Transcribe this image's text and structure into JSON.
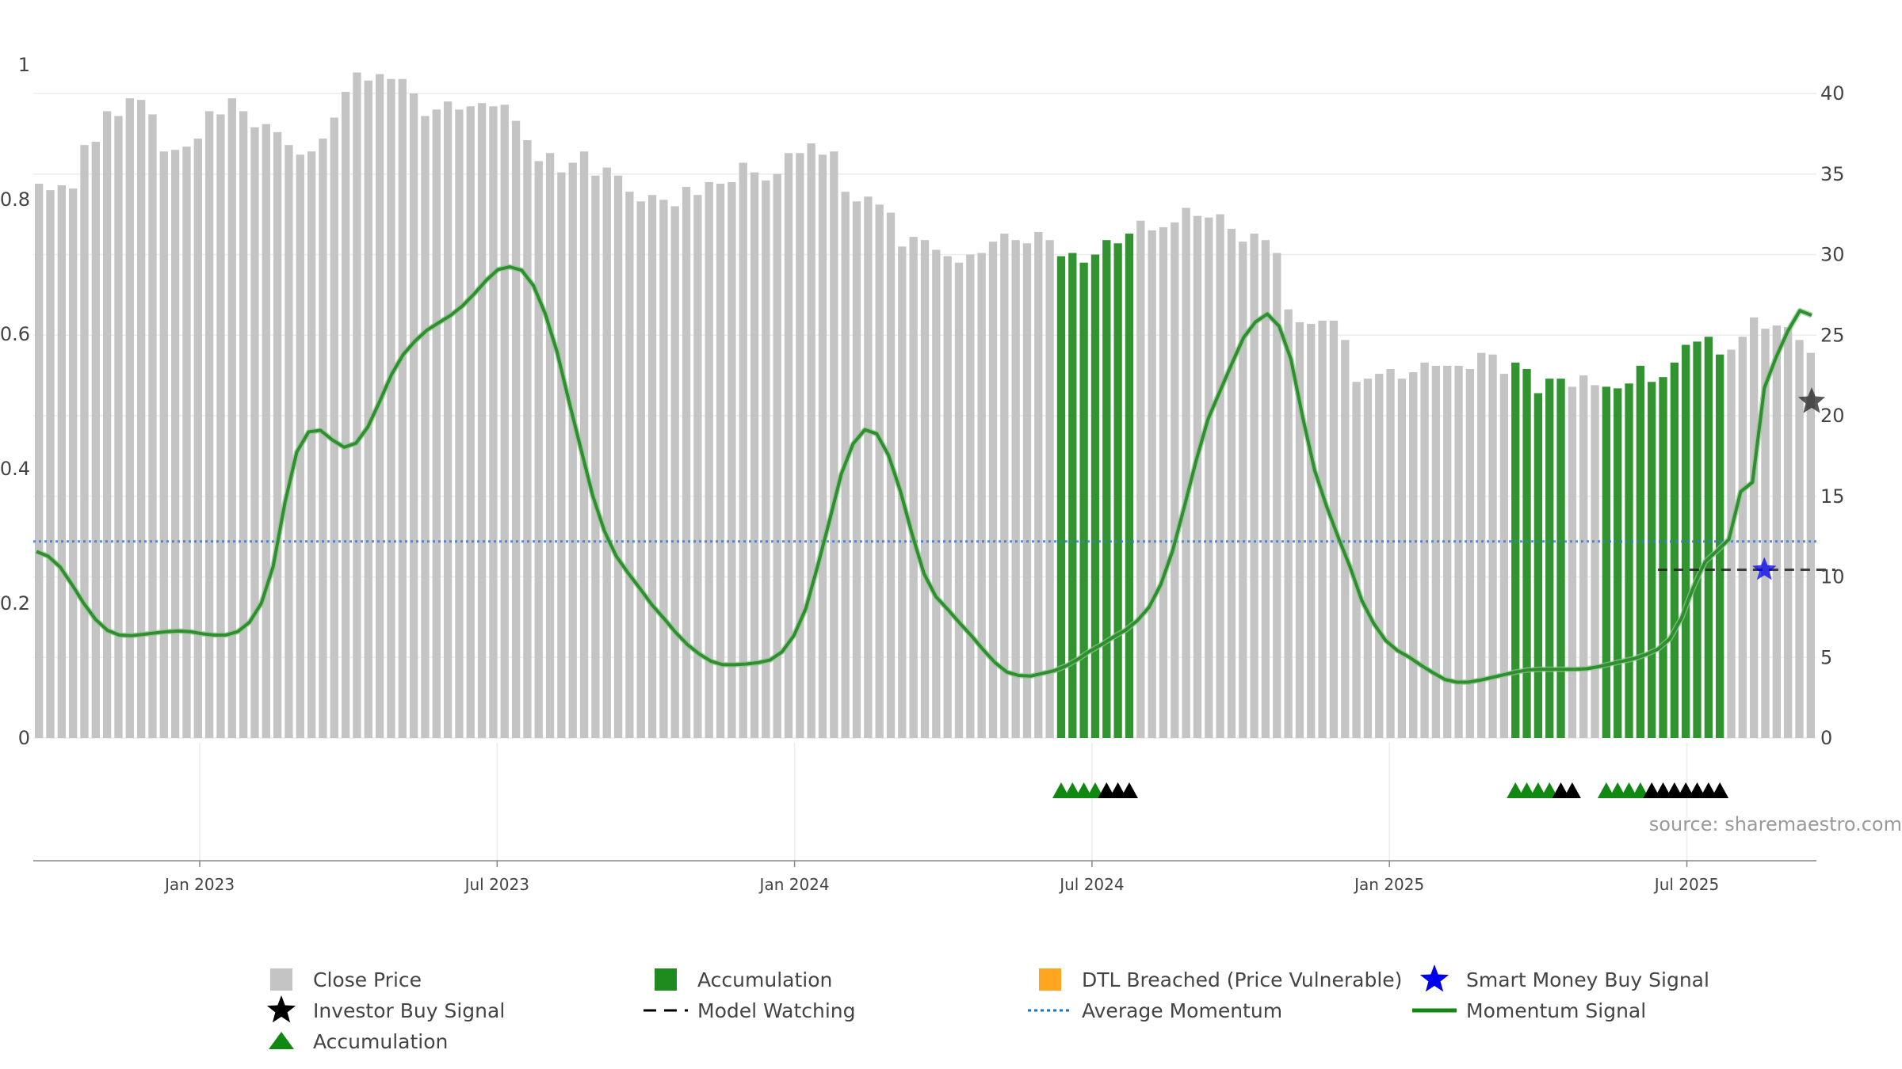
{
  "chart_data": {
    "type": "bar",
    "left_axis": {
      "ylim": [
        0,
        1
      ],
      "ticks": [
        "0",
        "0.2",
        "0.4",
        "0.6",
        "0.8",
        "1"
      ]
    },
    "right_axis": {
      "ylim": [
        0,
        40
      ],
      "ticks": [
        "0",
        "5",
        "10",
        "15",
        "20",
        "25",
        "30",
        "35",
        "40"
      ]
    },
    "x_axis": {
      "ticks": [
        "Jan 2023",
        "Jul 2023",
        "Jan 2024",
        "Jul 2024",
        "Jan 2025",
        "Jul 2025"
      ]
    },
    "grid": true,
    "legend_position": "bottom",
    "source": "source: sharemaestro.com",
    "close_price": [
      34.4,
      34.0,
      34.3,
      34.1,
      36.8,
      37.0,
      38.9,
      38.6,
      39.7,
      39.6,
      38.7,
      36.4,
      36.5,
      36.7,
      37.2,
      38.9,
      38.7,
      39.7,
      38.9,
      37.9,
      38.1,
      37.6,
      36.8,
      36.2,
      36.4,
      37.2,
      38.5,
      40.1,
      41.3,
      40.8,
      41.2,
      40.9,
      40.9,
      40.0,
      38.6,
      39.0,
      39.5,
      39.0,
      39.2,
      39.4,
      39.2,
      39.3,
      38.3,
      37.1,
      35.8,
      36.3,
      35.1,
      35.7,
      36.4,
      34.9,
      35.4,
      34.9,
      33.9,
      33.3,
      33.7,
      33.4,
      33.0,
      34.2,
      33.7,
      34.5,
      34.4,
      34.5,
      35.7,
      35.1,
      34.6,
      35.0,
      36.3,
      36.3,
      36.9,
      36.2,
      36.4,
      33.9,
      33.3,
      33.6,
      33.1,
      32.6,
      30.5,
      31.1,
      30.9,
      30.3,
      29.9,
      29.5,
      30.0,
      30.1,
      30.8,
      31.3,
      30.9,
      30.7,
      31.4,
      30.9,
      29.9,
      30.1,
      29.5,
      30.0,
      30.9,
      30.7,
      31.3,
      32.1,
      31.5,
      31.7,
      32.0,
      32.9,
      32.4,
      32.3,
      32.5,
      31.6,
      30.8,
      31.3,
      30.9,
      30.1,
      26.6,
      25.8,
      25.7,
      25.9,
      25.9,
      24.7,
      22.1,
      22.3,
      22.6,
      22.9,
      22.3,
      22.7,
      23.3,
      23.1,
      23.1,
      23.1,
      22.9,
      23.9,
      23.8,
      22.6,
      23.3,
      22.9,
      21.4,
      22.3,
      22.3,
      21.8,
      22.5,
      21.9,
      21.8,
      21.7,
      22.0,
      23.1,
      22.1,
      22.4,
      23.3,
      24.4,
      24.6,
      24.9,
      23.8,
      24.1,
      24.9,
      26.1,
      25.4,
      25.6,
      25.5,
      24.7,
      23.9
    ],
    "accumulation_bar_ranges": [
      [
        90,
        96
      ],
      [
        130,
        134
      ],
      [
        138,
        148
      ]
    ],
    "accumulation_triangle_ranges": [
      [
        90,
        93
      ],
      [
        130,
        133
      ],
      [
        138,
        141
      ]
    ],
    "investor_triangle_ranges": [
      [
        94,
        96
      ],
      [
        134,
        135
      ],
      [
        142,
        148
      ]
    ],
    "momentum": [
      0.277,
      0.27,
      0.254,
      0.228,
      0.2,
      0.176,
      0.16,
      0.153,
      0.152,
      0.154,
      0.156,
      0.158,
      0.159,
      0.158,
      0.155,
      0.153,
      0.153,
      0.158,
      0.172,
      0.2,
      0.255,
      0.35,
      0.425,
      0.455,
      0.457,
      0.443,
      0.432,
      0.438,
      0.462,
      0.5,
      0.54,
      0.57,
      0.59,
      0.606,
      0.617,
      0.628,
      0.642,
      0.66,
      0.68,
      0.696,
      0.7,
      0.695,
      0.672,
      0.63,
      0.573,
      0.5,
      0.43,
      0.36,
      0.307,
      0.27,
      0.245,
      0.222,
      0.198,
      0.178,
      0.157,
      0.139,
      0.125,
      0.114,
      0.109,
      0.109,
      0.11,
      0.112,
      0.116,
      0.128,
      0.152,
      0.192,
      0.255,
      0.322,
      0.392,
      0.437,
      0.458,
      0.452,
      0.42,
      0.367,
      0.302,
      0.244,
      0.21,
      0.191,
      0.171,
      0.152,
      0.131,
      0.112,
      0.098,
      0.093,
      0.092,
      0.096,
      0.1,
      0.107,
      0.117,
      0.129,
      0.139,
      0.15,
      0.16,
      0.174,
      0.194,
      0.228,
      0.278,
      0.344,
      0.413,
      0.474,
      0.515,
      0.556,
      0.595,
      0.618,
      0.63,
      0.612,
      0.563,
      0.476,
      0.398,
      0.345,
      0.298,
      0.254,
      0.204,
      0.17,
      0.145,
      0.13,
      0.12,
      0.108,
      0.097,
      0.087,
      0.083,
      0.083,
      0.086,
      0.09,
      0.094,
      0.098,
      0.101,
      0.102,
      0.102,
      0.102,
      0.102,
      0.103,
      0.106,
      0.11,
      0.114,
      0.118,
      0.124,
      0.132,
      0.147,
      0.178,
      0.224,
      0.262,
      0.278,
      0.295,
      0.366,
      0.38,
      0.52,
      0.566,
      0.605,
      0.635,
      0.628
    ],
    "average_momentum": 0.292,
    "model_watching": [
      {
        "from": 137,
        "to": 152,
        "value": 0.25
      }
    ],
    "smart_money_buy_signal": [
      {
        "index": 146,
        "value": 0.25
      }
    ],
    "investor_buy_signal": [
      {
        "index": 150,
        "value": 0.5
      }
    ]
  },
  "colors": {
    "close_price": "#c4c4c4",
    "accumulation": "#1f8b1f",
    "dtl": "#ffa520",
    "smart_money": "#0000ee",
    "investor": "#000000",
    "average_momentum": "#3a7bd5",
    "momentum": "#2f8f2f",
    "grid": "#ececec"
  },
  "legend": [
    {
      "label": "Close Price",
      "marker": "square-gray"
    },
    {
      "label": "Accumulation",
      "marker": "square-green"
    },
    {
      "label": "DTL Breached (Price Vulnerable)",
      "marker": "square-orange"
    },
    {
      "label": "Smart Money Buy Signal",
      "marker": "star-blue"
    },
    {
      "label": "Investor Buy Signal",
      "marker": "star-black"
    },
    {
      "label": "Model Watching",
      "marker": "dash-black"
    },
    {
      "label": "Average Momentum",
      "marker": "dotted-blue"
    },
    {
      "label": "Momentum Signal",
      "marker": "line-green"
    },
    {
      "label": "Accumulation",
      "marker": "triangle-green"
    }
  ]
}
